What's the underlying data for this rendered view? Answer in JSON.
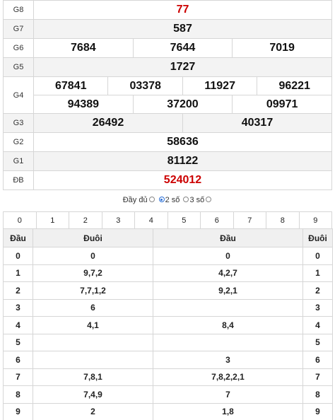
{
  "prizes": {
    "g8": {
      "label": "G8",
      "numbers": [
        "77"
      ]
    },
    "g7": {
      "label": "G7",
      "numbers": [
        "587"
      ]
    },
    "g6": {
      "label": "G6",
      "numbers": [
        "7684",
        "7644",
        "7019"
      ]
    },
    "g5": {
      "label": "G5",
      "numbers": [
        "1727"
      ]
    },
    "g4": {
      "label": "G4",
      "numbers": [
        "67841",
        "03378",
        "11927",
        "96221",
        "94389",
        "37200",
        "09971"
      ]
    },
    "g3": {
      "label": "G3",
      "numbers": [
        "26492",
        "40317"
      ]
    },
    "g2": {
      "label": "G2",
      "numbers": [
        "58636"
      ]
    },
    "g1": {
      "label": "G1",
      "numbers": [
        "81122"
      ]
    },
    "db": {
      "label": "ĐB",
      "numbers": [
        "524012"
      ]
    }
  },
  "mode": {
    "options": [
      "Đầy đủ",
      "2 số",
      "3 số"
    ],
    "selected": "2 số"
  },
  "digit_tabs": [
    "0",
    "1",
    "2",
    "3",
    "4",
    "5",
    "6",
    "7",
    "8",
    "9"
  ],
  "loto": {
    "headers": [
      "Đầu",
      "Đuôi",
      "Đầu",
      "Đuôi"
    ],
    "rows": [
      {
        "dau": "0",
        "duoi": "0",
        "dau2": "0",
        "duoi2": "0"
      },
      {
        "dau": "1",
        "duoi": "9,7,2",
        "dau2": "4,2,7",
        "duoi2": "1"
      },
      {
        "dau": "2",
        "duoi": "7,7,1,2",
        "dau2": "9,2,1",
        "duoi2": "2"
      },
      {
        "dau": "3",
        "duoi": "6",
        "dau2": "",
        "duoi2": "3"
      },
      {
        "dau": "4",
        "duoi": "4,1",
        "dau2": "8,4",
        "duoi2": "4"
      },
      {
        "dau": "5",
        "duoi": "",
        "dau2": "",
        "duoi2": "5"
      },
      {
        "dau": "6",
        "duoi": "",
        "dau2": "3",
        "duoi2": "6"
      },
      {
        "dau": "7",
        "duoi": "7,8,1",
        "dau2": "7,8,2,2,1",
        "duoi2": "7"
      },
      {
        "dau": "8",
        "duoi": "7,4,9",
        "dau2": "7",
        "duoi2": "8"
      },
      {
        "dau": "9",
        "duoi": "2",
        "dau2": "1,8",
        "duoi2": "9"
      }
    ]
  },
  "colors": {
    "special": "#cc0000",
    "border": "#d6d6d6",
    "alt_row": "#f3f3f3"
  }
}
